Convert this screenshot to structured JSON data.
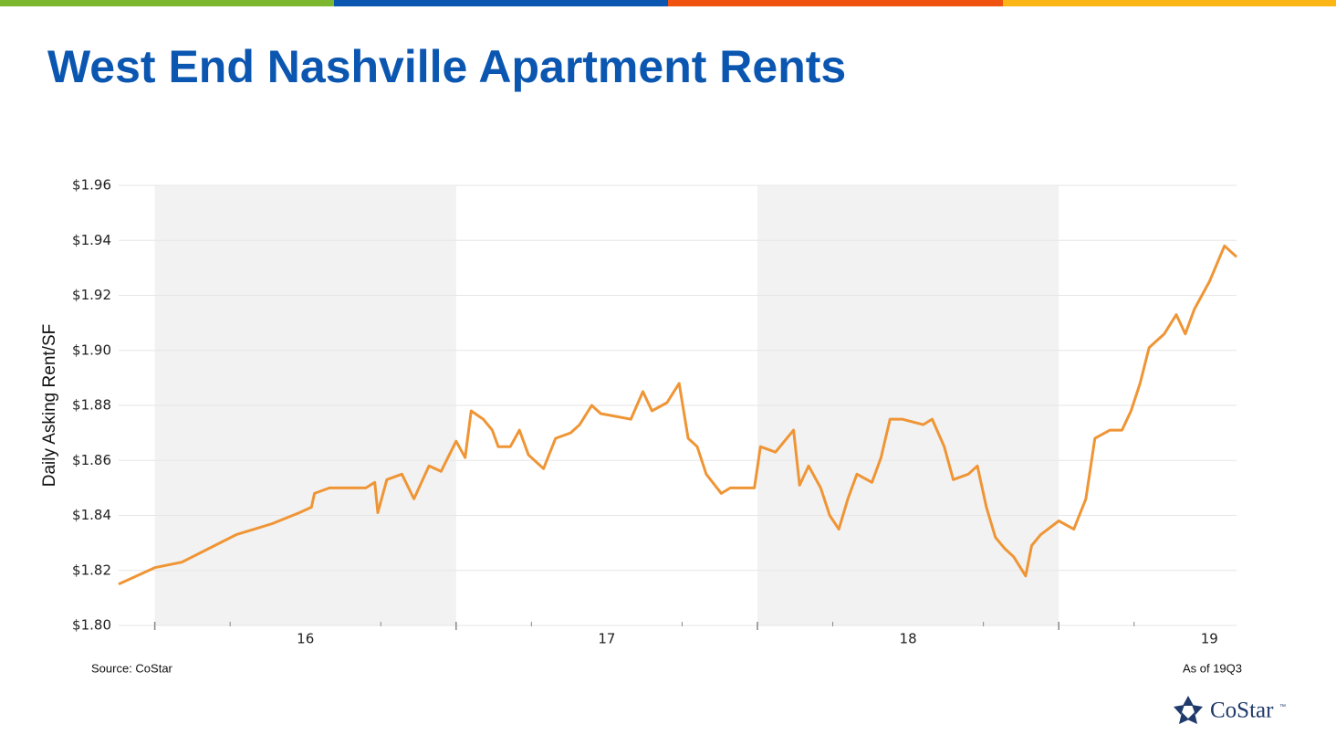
{
  "chart_data": {
    "type": "line",
    "title": "West End Nashville Apartment Rents",
    "y_label": "Daily Asking Rent/SF",
    "source": "Source: CoStar",
    "note": "As of 19Q3",
    "color": "#ef9535",
    "x": [
      15.38,
      15.5,
      15.59,
      15.68,
      15.77,
      15.83,
      15.89,
      15.98,
      16.02,
      16.03,
      16.08,
      16.2,
      16.23,
      16.24,
      16.27,
      16.32,
      16.36,
      16.41,
      16.45,
      16.5,
      16.53,
      16.55,
      16.59,
      16.62,
      16.64,
      16.68,
      16.71,
      16.74,
      16.79,
      16.83,
      16.88,
      16.91,
      16.95,
      16.98,
      17.08,
      17.12,
      17.15,
      17.2,
      17.24,
      17.27,
      17.3,
      17.33,
      17.38,
      17.41,
      17.49,
      17.51,
      17.56,
      17.62,
      17.64,
      17.67,
      17.71,
      17.74,
      17.77,
      17.8,
      17.83,
      17.88,
      17.91,
      17.94,
      17.98,
      18.05,
      18.08,
      18.12,
      18.15,
      18.2,
      18.23,
      18.26,
      18.29,
      18.32,
      18.35,
      18.39,
      18.41,
      18.44,
      18.5,
      18.55,
      18.59,
      18.62,
      18.67,
      18.71,
      18.74,
      18.77,
      18.8,
      18.85,
      18.89,
      18.92,
      18.95,
      19.0,
      19.05,
      19.09
    ],
    "values": [
      1.815,
      1.821,
      1.823,
      1.828,
      1.833,
      1.835,
      1.837,
      1.841,
      1.843,
      1.848,
      1.85,
      1.85,
      1.852,
      1.841,
      1.853,
      1.855,
      1.846,
      1.858,
      1.856,
      1.867,
      1.861,
      1.878,
      1.875,
      1.871,
      1.865,
      1.865,
      1.871,
      1.862,
      1.857,
      1.868,
      1.87,
      1.873,
      1.88,
      1.877,
      1.875,
      1.885,
      1.878,
      1.881,
      1.888,
      1.868,
      1.865,
      1.855,
      1.848,
      1.85,
      1.85,
      1.865,
      1.863,
      1.871,
      1.851,
      1.858,
      1.85,
      1.84,
      1.835,
      1.846,
      1.855,
      1.852,
      1.861,
      1.875,
      1.875,
      1.873,
      1.875,
      1.865,
      1.853,
      1.855,
      1.858,
      1.843,
      1.832,
      1.828,
      1.825,
      1.818,
      1.829,
      1.833,
      1.838,
      1.835,
      1.846,
      1.868,
      1.871,
      1.871,
      1.878,
      1.888,
      1.901,
      1.906,
      1.913,
      1.906,
      1.915,
      1.925,
      1.938,
      1.934
    ],
    "xlim": [
      15.38,
      19.09
    ],
    "xticks": [
      16,
      17,
      18,
      19
    ],
    "ylim": [
      1.8,
      1.96
    ],
    "yticks": [
      {
        "value": 1.8,
        "label": "$1.80"
      },
      {
        "value": 1.82,
        "label": "$1.82"
      },
      {
        "value": 1.84,
        "label": "$1.84"
      },
      {
        "value": 1.86,
        "label": "$1.86"
      },
      {
        "value": 1.88,
        "label": "$1.88"
      },
      {
        "value": 1.9,
        "label": "$1.90"
      },
      {
        "value": 1.92,
        "label": "$1.92"
      },
      {
        "value": 1.94,
        "label": "$1.94"
      },
      {
        "value": 1.96,
        "label": "$1.96"
      }
    ],
    "grid": true,
    "shade_alternate_years": true
  },
  "logo": {
    "text": "CoStar",
    "mark": "™"
  }
}
